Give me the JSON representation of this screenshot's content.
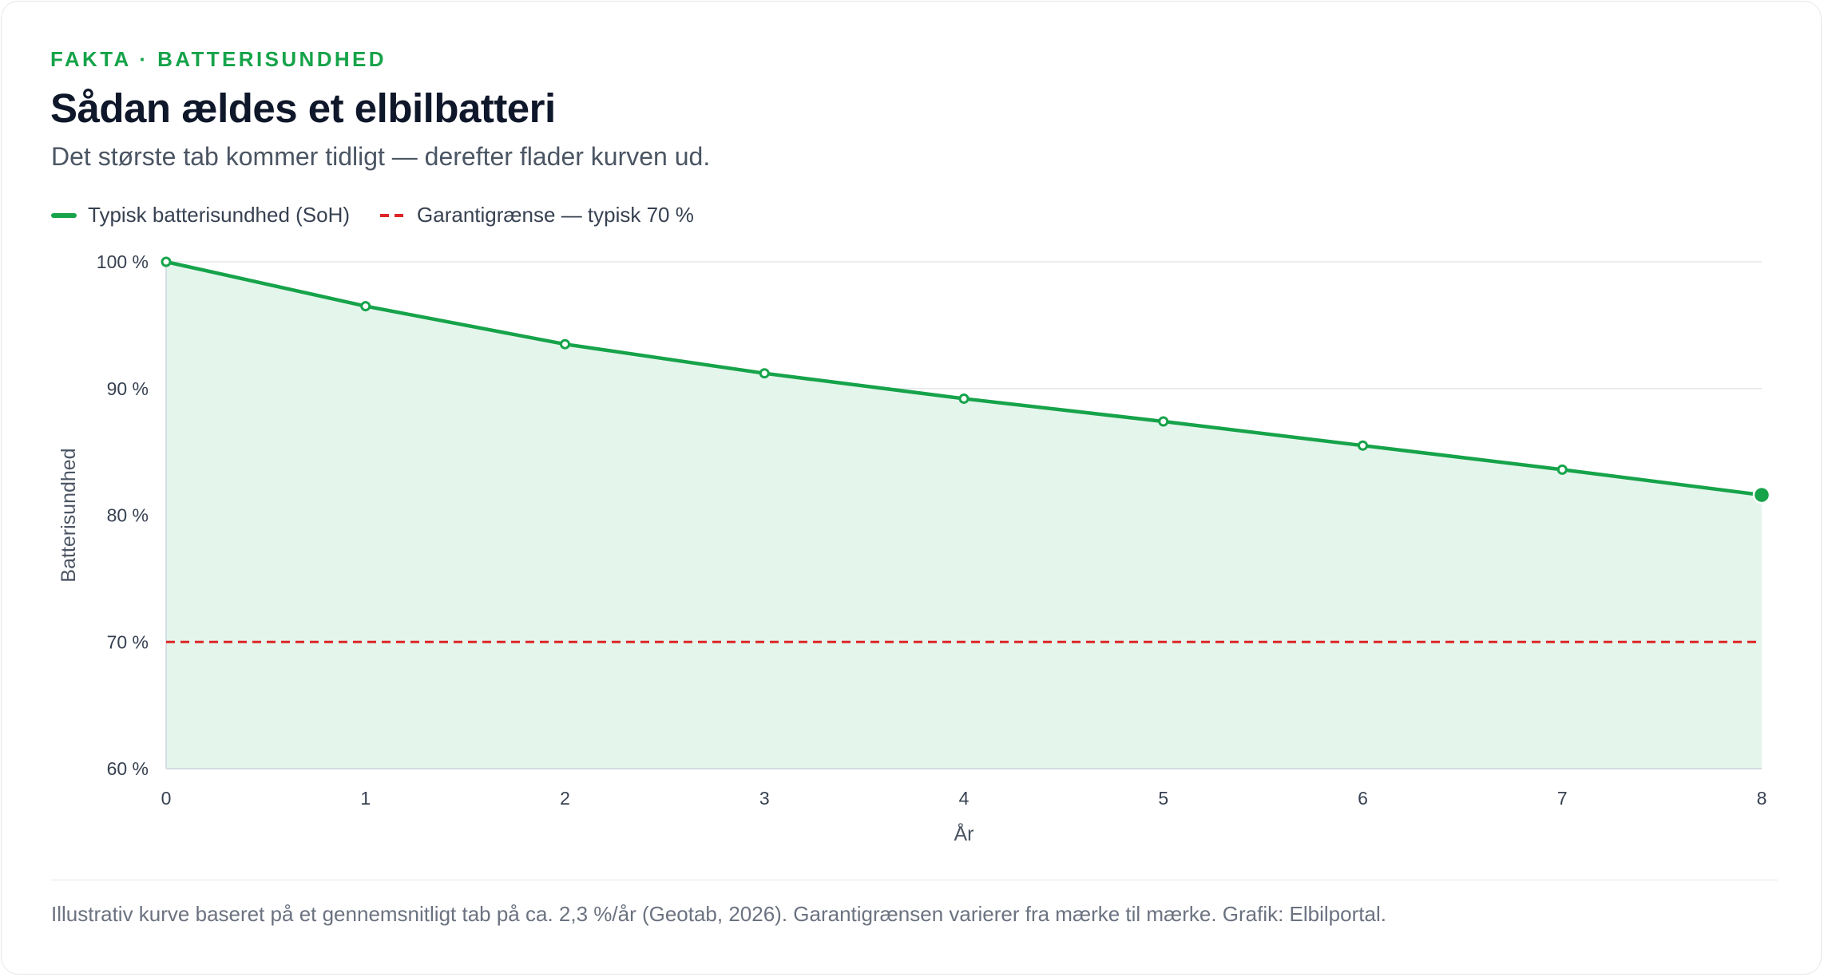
{
  "header": {
    "eyebrow": "FAKTA · BATTERISUNDHED",
    "title": "Sådan ældes et elbilbatteri",
    "subtitle": "Det største tab kommer tidligt — derefter flader kurven ud."
  },
  "legend": {
    "series_label": "Typisk batterisundhed (SoH)",
    "threshold_label": "Garantigrænse — typisk 70 %"
  },
  "colors": {
    "series": "#16a34a",
    "area": "#e4f5ec",
    "threshold": "#dc2626",
    "grid": "#e5e7eb",
    "axis_text": "#374151"
  },
  "chart_data": {
    "type": "area",
    "xlabel": "År",
    "ylabel": "Batterisundhed",
    "x": [
      0,
      1,
      2,
      3,
      4,
      5,
      6,
      7,
      8
    ],
    "series": [
      {
        "name": "Typisk batterisundhed (SoH)",
        "values": [
          100,
          96.5,
          93.5,
          91.2,
          89.2,
          87.4,
          85.5,
          83.6,
          81.6
        ]
      }
    ],
    "threshold": {
      "name": "Garantigrænse — typisk 70 %",
      "value": 70
    },
    "xlim": [
      0,
      8
    ],
    "ylim": [
      60,
      100
    ],
    "yticks": [
      60,
      70,
      80,
      90,
      100
    ],
    "ytick_labels": [
      "60 %",
      "70 %",
      "80 %",
      "90 %",
      "100 %"
    ],
    "xticks": [
      0,
      1,
      2,
      3,
      4,
      5,
      6,
      7,
      8
    ],
    "xtick_labels": [
      "0",
      "1",
      "2",
      "3",
      "4",
      "5",
      "6",
      "7",
      "8"
    ],
    "grid": true,
    "legend_position": "top-left"
  },
  "footer": {
    "note": "Illustrativ kurve baseret på et gennemsnitligt tab på ca. 2,3 %/år (Geotab, 2026). Garantigrænsen varierer fra mærke til mærke. Grafik: Elbilportal."
  }
}
